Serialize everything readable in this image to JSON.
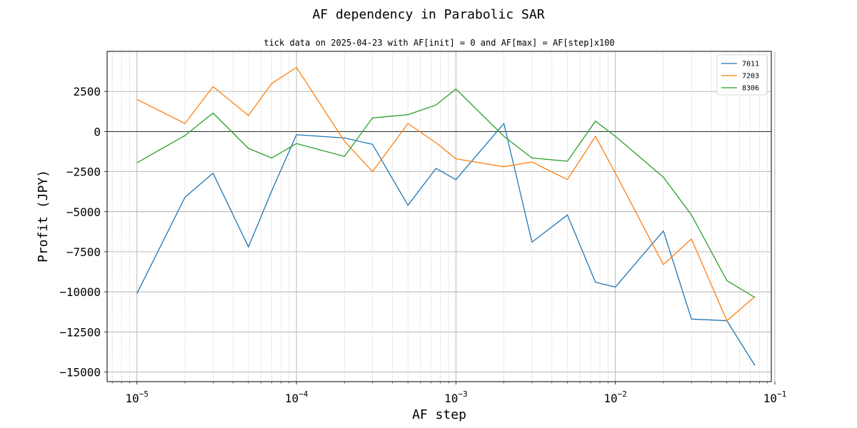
{
  "chart_data": {
    "type": "line",
    "title": "AF dependency in Parabolic SAR",
    "subtitle": "tick data on 2025-04-23 with AF[init] = 0 and AF[max] = AF[step]x100",
    "xlabel": "AF step",
    "ylabel": "Profit (JPY)",
    "xscale": "log",
    "xlim": [
      6.5e-06,
      0.095
    ],
    "ylim": [
      -15600,
      5000
    ],
    "yticks": [
      2500,
      0,
      -2500,
      -5000,
      -7500,
      -10000,
      -12500,
      -15000
    ],
    "ytick_labels": [
      "2500",
      "0",
      "−2500",
      "−5000",
      "−7500",
      "−10000",
      "−12500",
      "−15000"
    ],
    "xticks": [
      1e-05,
      0.0001,
      0.001,
      0.01,
      0.1
    ],
    "xtick_labels": [
      {
        "base": "10",
        "exp": "−5"
      },
      {
        "base": "10",
        "exp": "−4"
      },
      {
        "base": "10",
        "exp": "−3"
      },
      {
        "base": "10",
        "exp": "−2"
      },
      {
        "base": "10",
        "exp": "−1"
      }
    ],
    "grid": true,
    "legend_position": "top-right",
    "x": [
      1e-05,
      2e-05,
      3e-05,
      5e-05,
      7e-05,
      0.0001,
      0.0002,
      0.0003,
      0.0005,
      0.00075,
      0.001,
      0.002,
      0.003,
      0.005,
      0.0075,
      0.01,
      0.02,
      0.03,
      0.05,
      0.075
    ],
    "series": [
      {
        "name": "7011",
        "color": "#1f77b4",
        "values": [
          -10100,
          -4100,
          -2600,
          -7200,
          -3700,
          -200,
          -400,
          -800,
          -4600,
          -2300,
          -3000,
          500,
          -6900,
          -5200,
          -9400,
          -9700,
          -6200,
          -11700,
          -11800,
          -14600
        ]
      },
      {
        "name": "7203",
        "color": "#ff7f0e",
        "values": [
          2000,
          500,
          2800,
          1000,
          3000,
          4000,
          -600,
          -2500,
          500,
          -700,
          -1700,
          -2200,
          -1900,
          -3000,
          -300,
          -2600,
          -8300,
          -6700,
          -11800,
          -10300
        ]
      },
      {
        "name": "8306",
        "color": "#2ca02c",
        "values": [
          -1950,
          -250,
          1150,
          -1050,
          -1650,
          -750,
          -1550,
          850,
          1050,
          1650,
          2650,
          -300,
          -1650,
          -1850,
          650,
          -300,
          -2850,
          -5200,
          -9300,
          -10350
        ]
      }
    ]
  }
}
